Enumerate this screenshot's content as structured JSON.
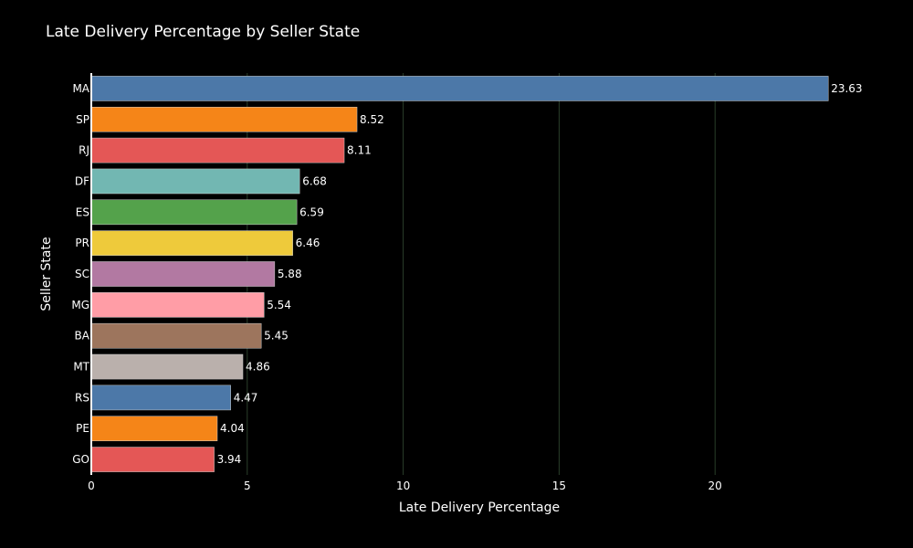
{
  "chart_data": {
    "type": "bar",
    "orientation": "horizontal",
    "title": "Late Delivery Percentage by Seller State",
    "xlabel": "Late Delivery Percentage",
    "ylabel": "Seller State",
    "xlim": [
      0,
      25
    ],
    "x_ticks": [
      0,
      5,
      10,
      15,
      20
    ],
    "grid": "vertical",
    "categories": [
      "MA",
      "SP",
      "RJ",
      "DF",
      "ES",
      "PR",
      "SC",
      "MG",
      "BA",
      "MT",
      "RS",
      "PE",
      "GO"
    ],
    "values": [
      23.63,
      8.52,
      8.11,
      6.68,
      6.59,
      6.46,
      5.88,
      5.54,
      5.45,
      4.86,
      4.47,
      4.04,
      3.94
    ],
    "data_labels": [
      "23.63",
      "8.52",
      "8.11",
      "6.68",
      "6.59",
      "6.46",
      "5.88",
      "5.54",
      "5.45",
      "4.86",
      "4.47",
      "4.04",
      "3.94"
    ],
    "colors": [
      "#4c78a8",
      "#f58518",
      "#e45756",
      "#72b7b2",
      "#54a24b",
      "#eeca3b",
      "#b279a2",
      "#ff9da6",
      "#9d755d",
      "#bab0ac",
      "#4c78a8",
      "#f58518",
      "#e45756"
    ]
  },
  "theme": {
    "background": "#000000",
    "text_color": "#ffffff",
    "grid_color": "#2a3f2a",
    "axis_line_color": "#ffffff"
  }
}
